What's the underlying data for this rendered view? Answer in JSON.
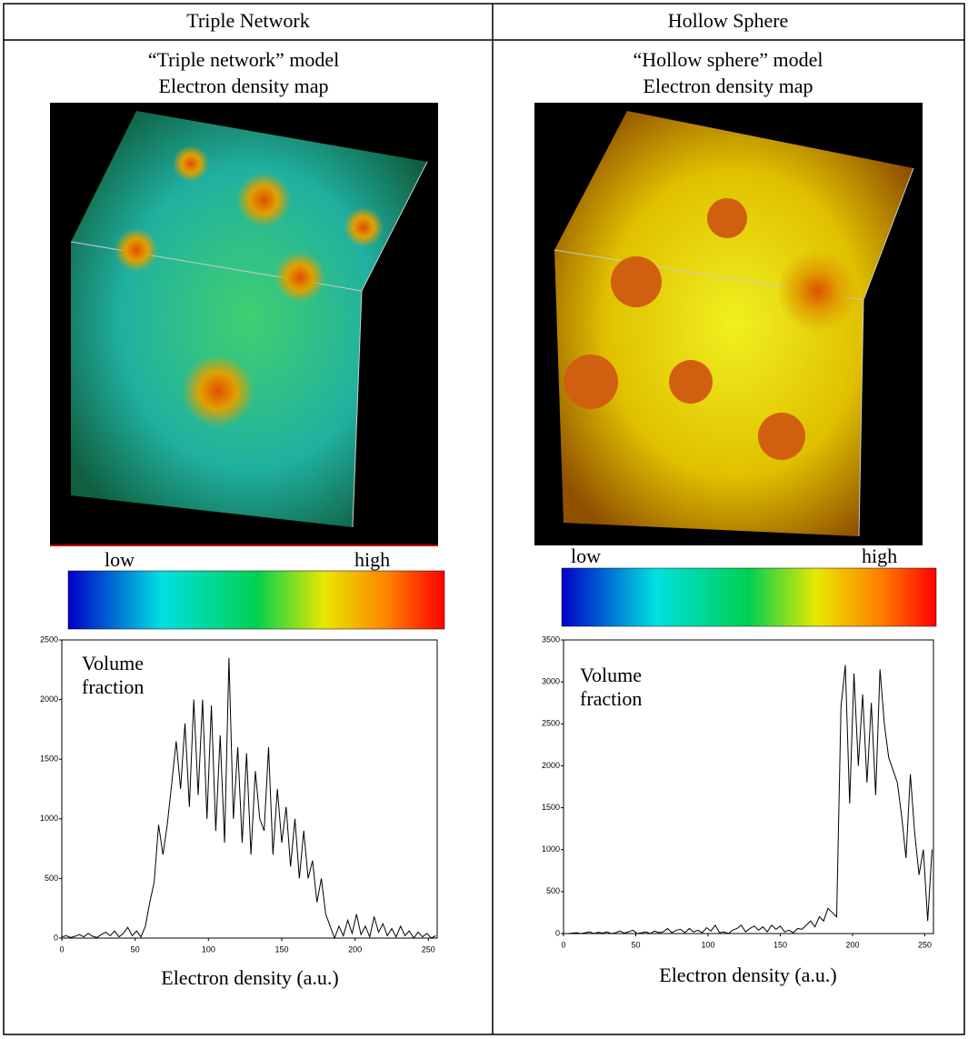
{
  "table": {
    "headers": [
      "Triple Network",
      "Hollow Sphere"
    ],
    "captions": [
      [
        "“Triple network” model",
        "Electron density map"
      ],
      [
        "“Hollow sphere” model",
        "Electron density map"
      ]
    ],
    "colorbar_labels": [
      [
        "low",
        "high"
      ],
      [
        "low",
        "high"
      ]
    ]
  },
  "chart_data": [
    {
      "type": "line",
      "annotation": [
        "Volume",
        "fraction"
      ],
      "x_label": "Electron density (a.u.)",
      "color": "#000000",
      "xlim": [
        0,
        256
      ],
      "xticks": [
        0,
        50,
        100,
        150,
        200,
        250
      ],
      "ylim": [
        0,
        2500
      ],
      "yticks": [
        0,
        500,
        1000,
        1500,
        2000,
        2500
      ],
      "x": [
        0,
        3,
        6,
        9,
        12,
        15,
        18,
        21,
        24,
        27,
        30,
        33,
        36,
        39,
        42,
        45,
        48,
        51,
        54,
        57,
        60,
        63,
        66,
        69,
        72,
        75,
        78,
        81,
        84,
        87,
        90,
        93,
        96,
        99,
        102,
        105,
        108,
        111,
        114,
        117,
        120,
        123,
        126,
        129,
        132,
        135,
        138,
        141,
        144,
        147,
        150,
        153,
        156,
        159,
        162,
        165,
        168,
        171,
        174,
        177,
        180,
        183,
        186,
        189,
        192,
        195,
        198,
        201,
        204,
        207,
        210,
        213,
        216,
        219,
        222,
        225,
        228,
        231,
        234,
        237,
        240,
        243,
        246,
        249,
        252,
        255
      ],
      "values": [
        10,
        20,
        5,
        15,
        30,
        10,
        40,
        15,
        5,
        30,
        50,
        20,
        60,
        10,
        40,
        90,
        20,
        60,
        10,
        100,
        300,
        470,
        950,
        700,
        960,
        1300,
        1650,
        1250,
        1800,
        1100,
        2000,
        1200,
        2000,
        1000,
        1950,
        900,
        1700,
        800,
        2350,
        1000,
        1600,
        800,
        1550,
        700,
        1400,
        1000,
        900,
        1600,
        700,
        1250,
        800,
        1100,
        600,
        1000,
        500,
        900,
        500,
        650,
        300,
        500,
        200,
        100,
        0,
        100,
        20,
        150,
        40,
        200,
        30,
        100,
        10,
        180,
        50,
        120,
        20,
        80,
        10,
        100,
        20,
        60,
        0,
        50,
        10,
        40,
        0,
        20
      ]
    },
    {
      "type": "line",
      "annotation": [
        "Volume",
        "fraction"
      ],
      "x_label": "Electron density (a.u.)",
      "color": "#000000",
      "xlim": [
        0,
        256
      ],
      "xticks": [
        0,
        50,
        100,
        150,
        200,
        250
      ],
      "ylim": [
        0,
        3500
      ],
      "yticks": [
        0,
        500,
        1000,
        1500,
        2000,
        2500,
        3000,
        3500
      ],
      "x": [
        0,
        3,
        6,
        9,
        12,
        15,
        18,
        21,
        24,
        27,
        30,
        33,
        36,
        39,
        42,
        45,
        48,
        51,
        54,
        57,
        60,
        63,
        66,
        69,
        72,
        75,
        78,
        81,
        84,
        87,
        90,
        93,
        96,
        99,
        102,
        105,
        108,
        111,
        114,
        117,
        120,
        123,
        126,
        129,
        132,
        135,
        138,
        141,
        144,
        147,
        150,
        153,
        156,
        159,
        162,
        165,
        168,
        171,
        174,
        177,
        180,
        183,
        186,
        189,
        192,
        195,
        198,
        201,
        204,
        207,
        210,
        213,
        216,
        219,
        222,
        225,
        228,
        231,
        234,
        237,
        240,
        243,
        246,
        249,
        252,
        255
      ],
      "values": [
        0,
        0,
        5,
        10,
        0,
        10,
        20,
        0,
        15,
        5,
        20,
        0,
        10,
        30,
        5,
        20,
        40,
        0,
        10,
        20,
        0,
        30,
        10,
        20,
        60,
        10,
        40,
        50,
        10,
        60,
        20,
        40,
        10,
        70,
        30,
        100,
        10,
        20,
        0,
        40,
        60,
        100,
        20,
        60,
        90,
        40,
        80,
        20,
        100,
        50,
        90,
        20,
        40,
        10,
        60,
        50,
        100,
        150,
        80,
        200,
        150,
        300,
        250,
        200,
        2700,
        3200,
        1550,
        3100,
        2000,
        2850,
        1800,
        2750,
        1650,
        3150,
        2500,
        2100,
        1950,
        1800,
        1400,
        900,
        1900,
        1200,
        700,
        1000,
        150,
        1000
      ]
    }
  ]
}
